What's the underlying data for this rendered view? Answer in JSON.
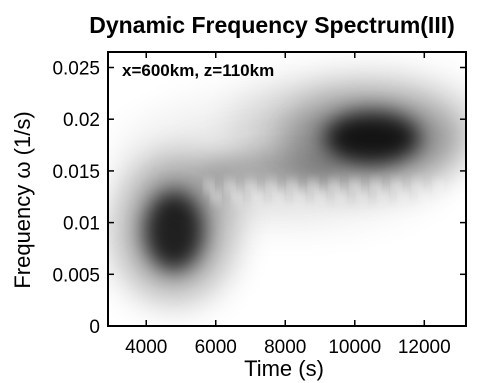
{
  "chart_data": {
    "type": "heatmap",
    "title": "Dynamic Frequency Spectrum(III)",
    "annotation": "x=600km, z=110km",
    "xlabel": "Time (s)",
    "ylabel": "Frequency ω (1/s)",
    "xlim": [
      2900,
      13200
    ],
    "ylim": [
      0,
      0.0265
    ],
    "xticks": [
      4000,
      6000,
      8000,
      10000,
      12000
    ],
    "yticks": [
      0,
      0.005,
      0.01,
      0.015,
      0.02,
      0.025
    ],
    "xtick_labels": [
      "4000",
      "6000",
      "8000",
      "10000",
      "12000"
    ],
    "ytick_labels": [
      "0",
      "0.005",
      "0.01",
      "0.015",
      "0.02",
      "0.025"
    ],
    "colormap": "grayscale (white = low, black = high)",
    "grid": false,
    "features": [
      {
        "time": 4800,
        "frequency": 0.0092,
        "intensity": 0.95
      },
      {
        "time": 10500,
        "frequency": 0.0182,
        "intensity": 1.0
      },
      {
        "time": 7600,
        "frequency": 0.015,
        "intensity": 0.25
      }
    ]
  }
}
